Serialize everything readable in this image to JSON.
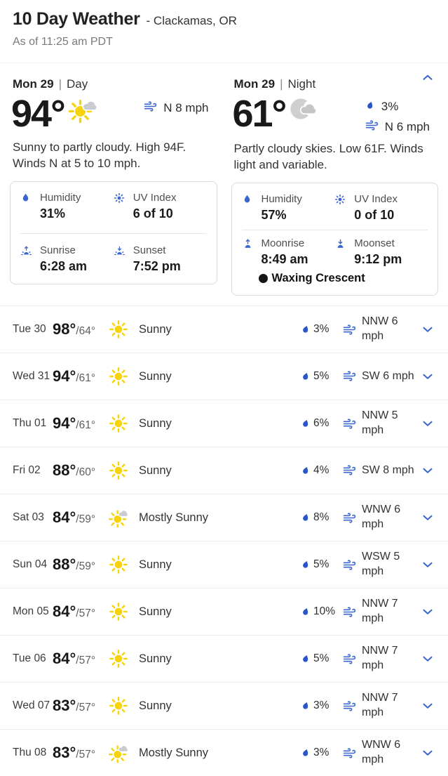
{
  "header": {
    "title": "10 Day Weather",
    "location": "- Clackamas, OR",
    "as_of": "As of 11:25 am PDT"
  },
  "colors": {
    "accent_blue": "#3a66d1",
    "drop_blue": "#2a55c8",
    "sun_yellow": "#f6d30b",
    "cloud_gray": "#c9cdd2",
    "moon_gray": "#cfcfcf",
    "night_cloud_gray": "#c6c6c6"
  },
  "detail": {
    "sep": "|",
    "day": {
      "date": "Mon 29",
      "period": "Day",
      "temp": "94°",
      "icon": "partly-cloudy-day-icon",
      "wind": "N 8 mph",
      "narrative": "Sunny to partly cloudy. High 94F. Winds N at 5 to 10 mph.",
      "stats": [
        {
          "icon": "humidity-icon",
          "label": "Humidity",
          "value": "31%"
        },
        {
          "icon": "uv-index-icon",
          "label": "UV Index",
          "value": "6 of 10"
        },
        {
          "icon": "sunrise-icon",
          "label": "Sunrise",
          "value": "6:28 am"
        },
        {
          "icon": "sunset-icon",
          "label": "Sunset",
          "value": "7:52 pm"
        }
      ]
    },
    "night": {
      "date": "Mon 29",
      "period": "Night",
      "temp": "61°",
      "icon": "cloudy-night-icon",
      "precip": "3%",
      "wind": "N 6 mph",
      "narrative": "Partly cloudy skies. Low 61F. Winds light and variable.",
      "stats": [
        {
          "icon": "humidity-icon",
          "label": "Humidity",
          "value": "57%"
        },
        {
          "icon": "uv-index-icon",
          "label": "UV Index",
          "value": "0 of 10"
        },
        {
          "icon": "moonrise-icon",
          "label": "Moonrise",
          "value": "8:49 am"
        },
        {
          "icon": "moonset-icon",
          "label": "Moonset",
          "value": "9:12 pm"
        }
      ],
      "moon_phase": "Waxing Crescent"
    }
  },
  "rows": [
    {
      "date": "Tue 30",
      "hi": "98°",
      "lo": "/64°",
      "icon": "sunny-icon",
      "condition": "Sunny",
      "precip": "3%",
      "wind": "NNW 6 mph"
    },
    {
      "date": "Wed 31",
      "hi": "94°",
      "lo": "/61°",
      "icon": "sunny-icon",
      "condition": "Sunny",
      "precip": "5%",
      "wind": "SW 6 mph"
    },
    {
      "date": "Thu 01",
      "hi": "94°",
      "lo": "/61°",
      "icon": "sunny-icon",
      "condition": "Sunny",
      "precip": "6%",
      "wind": "NNW 5 mph"
    },
    {
      "date": "Fri 02",
      "hi": "88°",
      "lo": "/60°",
      "icon": "sunny-icon",
      "condition": "Sunny",
      "precip": "4%",
      "wind": "SW 8 mph"
    },
    {
      "date": "Sat 03",
      "hi": "84°",
      "lo": "/59°",
      "icon": "mostly-sunny-icon",
      "condition": "Mostly Sunny",
      "precip": "8%",
      "wind": "WNW 6 mph"
    },
    {
      "date": "Sun 04",
      "hi": "88°",
      "lo": "/59°",
      "icon": "sunny-icon",
      "condition": "Sunny",
      "precip": "5%",
      "wind": "WSW 5 mph"
    },
    {
      "date": "Mon 05",
      "hi": "84°",
      "lo": "/57°",
      "icon": "sunny-icon",
      "condition": "Sunny",
      "precip": "10%",
      "wind": "NNW 7 mph"
    },
    {
      "date": "Tue 06",
      "hi": "84°",
      "lo": "/57°",
      "icon": "sunny-icon",
      "condition": "Sunny",
      "precip": "5%",
      "wind": "NNW 7 mph"
    },
    {
      "date": "Wed 07",
      "hi": "83°",
      "lo": "/57°",
      "icon": "sunny-icon",
      "condition": "Sunny",
      "precip": "3%",
      "wind": "NNW 7 mph"
    },
    {
      "date": "Thu 08",
      "hi": "83°",
      "lo": "/57°",
      "icon": "mostly-sunny-icon",
      "condition": "Mostly Sunny",
      "precip": "3%",
      "wind": "WNW 6 mph"
    }
  ]
}
